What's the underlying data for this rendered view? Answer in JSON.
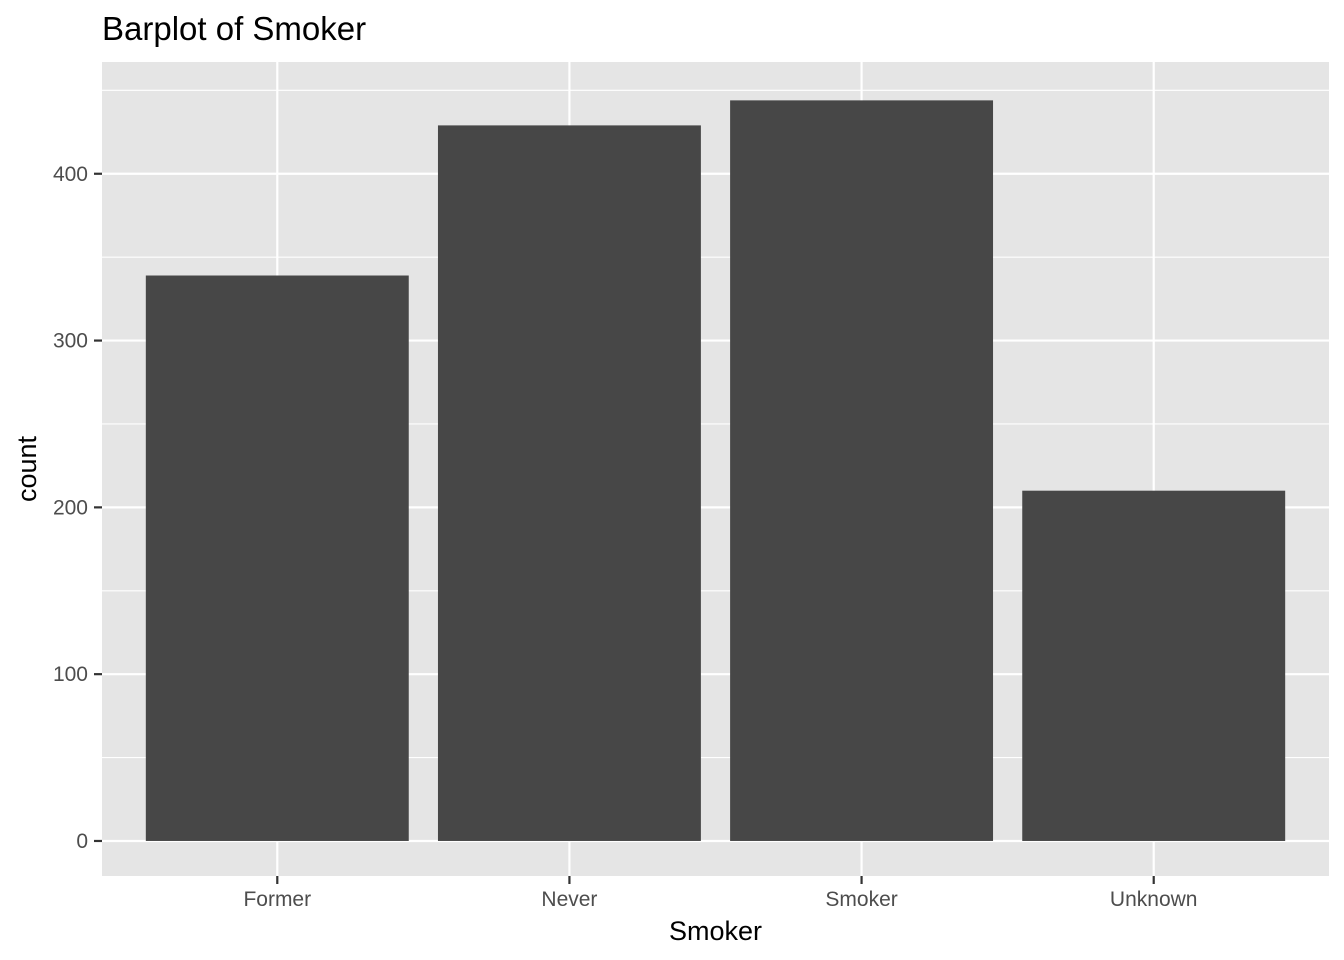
{
  "chart_data": {
    "type": "bar",
    "title": "Barplot of Smoker",
    "xlabel": "Smoker",
    "ylabel": "count",
    "categories": [
      "Former",
      "Never",
      "Smoker",
      "Unknown"
    ],
    "values": [
      339,
      429,
      444,
      210
    ],
    "ylim": [
      -21,
      467
    ],
    "yticks": [
      0,
      100,
      200,
      300,
      400
    ],
    "grid": true,
    "colors": {
      "panel": "#e5e5e5",
      "bar": "#474747",
      "grid": "#ffffff",
      "tick_text": "#4d4d4d",
      "tick_mark": "#333333"
    }
  }
}
